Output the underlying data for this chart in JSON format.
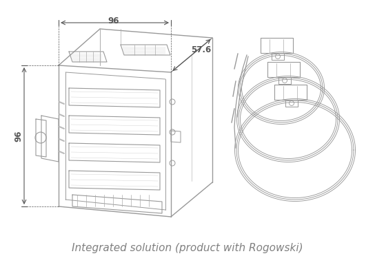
{
  "title": "Integrated solution (product with Rogowski)",
  "title_color": "#808080",
  "title_fontsize": 11,
  "background_color": "#ffffff",
  "line_color": "#999999",
  "line_width": 1.0,
  "dim_color": "#555555",
  "dim_label_96_top": "96",
  "dim_label_576": "57.6",
  "dim_label_96_left": "96",
  "fig_width": 5.44,
  "fig_height": 3.88
}
